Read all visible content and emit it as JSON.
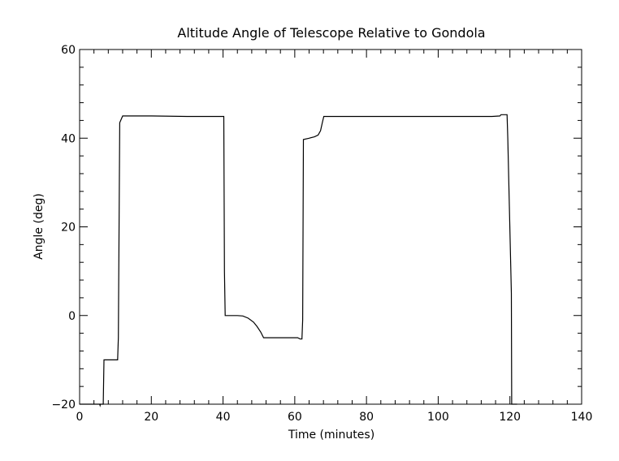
{
  "chart_data": {
    "type": "line",
    "title": "Altitude Angle of Telescope Relative to Gondola",
    "xlabel": "Time (minutes)",
    "ylabel": "Angle (deg)",
    "xlim": [
      0,
      140
    ],
    "ylim": [
      -20,
      60
    ],
    "x_ticks": [
      0,
      20,
      40,
      60,
      80,
      100,
      120,
      140
    ],
    "y_ticks": [
      -20,
      0,
      20,
      40,
      60
    ],
    "x_minor_step": 4,
    "y_minor_step": 4,
    "grid": false,
    "legend": "none",
    "line_color": "#000000",
    "series": [
      {
        "x": [
          0,
          5.6,
          5.7,
          5.8,
          6.6,
          6.8,
          8.1,
          8.2,
          10.6,
          10.8,
          11.2,
          12,
          20,
          30,
          40.2,
          40.4,
          40.6,
          42,
          44,
          45.5,
          47,
          48.5,
          49.5,
          50.5,
          51.3,
          51.8,
          52.2,
          55,
          58,
          60.8,
          61.5,
          62,
          62.2,
          62.4,
          64,
          65.5,
          66.5,
          67.2,
          67.7,
          68.1,
          69,
          80,
          100,
          115,
          117.2,
          117.5,
          119.2,
          119.4,
          120.4,
          120.5,
          122
        ],
        "y": [
          -20,
          -20,
          -20.3,
          -20,
          -20,
          -10,
          -10,
          -10,
          -10,
          -5,
          43.5,
          45,
          45,
          44.9,
          44.9,
          10,
          0,
          0,
          0,
          -0.1,
          -0.6,
          -1.5,
          -2.5,
          -3.7,
          -5.0,
          -5.0,
          -5.0,
          -5.0,
          -5.0,
          -5.0,
          -5.3,
          -5.3,
          -1,
          39.7,
          40,
          40.3,
          40.7,
          41.7,
          43.5,
          44.9,
          44.9,
          44.9,
          44.9,
          44.9,
          45.0,
          45.3,
          45.3,
          40,
          5,
          -20,
          -20
        ]
      }
    ]
  }
}
